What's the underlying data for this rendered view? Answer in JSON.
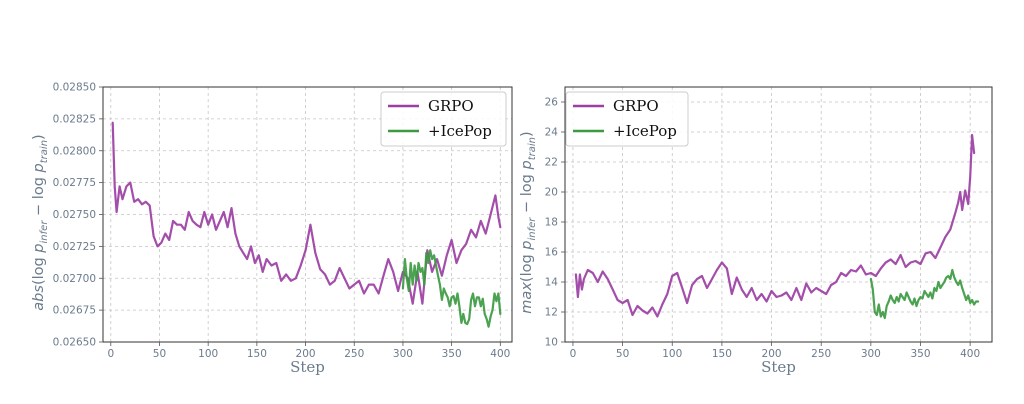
{
  "chart_data": [
    {
      "type": "line",
      "title": "",
      "xlabel": "Step",
      "ylabel_parts": {
        "func": "abs",
        "open": "(log ",
        "p1": "p",
        "s1": "infer",
        "mid": " − log ",
        "p2": "p",
        "s2": "train",
        "close": ")"
      },
      "xlim": [
        -8,
        412
      ],
      "ylim": [
        0.0265,
        0.0285
      ],
      "xticks": [
        0,
        50,
        100,
        150,
        200,
        250,
        300,
        350,
        400
      ],
      "yticks": [
        "0.02650",
        "0.02675",
        "0.02700",
        "0.02725",
        "0.02750",
        "0.02775",
        "0.02800",
        "0.02825",
        "0.02850"
      ],
      "grid": true,
      "legend": "top-right",
      "series": [
        {
          "name": "GRPO",
          "color": "#9b3fa3",
          "x": [
            2,
            4,
            6,
            9,
            12,
            16,
            20,
            24,
            28,
            32,
            36,
            40,
            44,
            48,
            52,
            56,
            60,
            64,
            68,
            72,
            76,
            80,
            84,
            88,
            92,
            96,
            100,
            104,
            108,
            112,
            116,
            120,
            124,
            128,
            132,
            136,
            140,
            144,
            148,
            152,
            156,
            160,
            165,
            170,
            175,
            180,
            185,
            190,
            195,
            200,
            205,
            210,
            215,
            220,
            225,
            230,
            235,
            240,
            245,
            250,
            255,
            260,
            265,
            270,
            275,
            280,
            285,
            290,
            295,
            300,
            305,
            310,
            315,
            320,
            325,
            330,
            335,
            340,
            345,
            350,
            355,
            360,
            365,
            370,
            375,
            380,
            385,
            390,
            395,
            398,
            400
          ],
          "y": [
            0.02822,
            0.02772,
            0.02752,
            0.02772,
            0.02762,
            0.02772,
            0.02775,
            0.0276,
            0.02762,
            0.02758,
            0.0276,
            0.02757,
            0.02733,
            0.02725,
            0.02728,
            0.02735,
            0.0273,
            0.02745,
            0.02742,
            0.02742,
            0.02738,
            0.02752,
            0.02745,
            0.02742,
            0.0274,
            0.02752,
            0.02742,
            0.0275,
            0.02738,
            0.02745,
            0.02752,
            0.0274,
            0.02755,
            0.02735,
            0.02725,
            0.0272,
            0.02715,
            0.02725,
            0.02712,
            0.02718,
            0.02705,
            0.02715,
            0.0271,
            0.02712,
            0.02698,
            0.02703,
            0.02698,
            0.027,
            0.0271,
            0.02722,
            0.02742,
            0.0272,
            0.02707,
            0.02703,
            0.02695,
            0.02698,
            0.02708,
            0.027,
            0.02692,
            0.02695,
            0.02698,
            0.02688,
            0.02695,
            0.02695,
            0.02688,
            0.02702,
            0.02715,
            0.02705,
            0.0269,
            0.02705,
            0.027,
            0.0268,
            0.02705,
            0.0268,
            0.02722,
            0.02705,
            0.02715,
            0.02702,
            0.02718,
            0.0273,
            0.02712,
            0.02722,
            0.02727,
            0.02738,
            0.02732,
            0.02745,
            0.02735,
            0.0275,
            0.02765,
            0.02748,
            0.0274
          ]
        },
        {
          "name": "+IcePop",
          "color": "#3c9a41",
          "x": [
            300,
            302,
            304,
            306,
            308,
            310,
            312,
            314,
            316,
            318,
            320,
            322,
            324,
            326,
            328,
            330,
            332,
            334,
            336,
            338,
            340,
            342,
            344,
            346,
            348,
            350,
            352,
            354,
            356,
            358,
            360,
            362,
            364,
            366,
            368,
            370,
            372,
            374,
            376,
            378,
            380,
            382,
            384,
            386,
            388,
            390,
            392,
            394,
            396,
            398,
            400
          ],
          "y": [
            0.02692,
            0.02715,
            0.027,
            0.0269,
            0.02712,
            0.02695,
            0.0271,
            0.02698,
            0.02712,
            0.02705,
            0.02708,
            0.02695,
            0.0272,
            0.02712,
            0.02722,
            0.02715,
            0.02718,
            0.0271,
            0.02702,
            0.02695,
            0.02683,
            0.02692,
            0.02688,
            0.02685,
            0.02678,
            0.02685,
            0.02686,
            0.0268,
            0.02688,
            0.02678,
            0.02665,
            0.02672,
            0.02665,
            0.02664,
            0.02668,
            0.02683,
            0.02688,
            0.02678,
            0.02685,
            0.02685,
            0.02678,
            0.02684,
            0.02672,
            0.02668,
            0.02662,
            0.0267,
            0.02675,
            0.02688,
            0.02682,
            0.02688,
            0.02672
          ]
        }
      ]
    },
    {
      "type": "line",
      "title": "",
      "xlabel": "Step",
      "ylabel_parts": {
        "func": "max",
        "open": "(log ",
        "p1": "p",
        "s1": "infer",
        "mid": " − log ",
        "p2": "p",
        "s2": "train",
        "close": ")"
      },
      "xlim": [
        -8,
        422
      ],
      "ylim": [
        10,
        27
      ],
      "xticks": [
        0,
        50,
        100,
        150,
        200,
        250,
        300,
        350,
        400
      ],
      "yticks": [
        "10",
        "12",
        "14",
        "16",
        "18",
        "20",
        "22",
        "24",
        "26"
      ],
      "grid": true,
      "legend": "top-left",
      "series": [
        {
          "name": "GRPO",
          "color": "#9b3fa3",
          "x": [
            3,
            5,
            7,
            9,
            11,
            15,
            20,
            25,
            30,
            35,
            40,
            45,
            50,
            55,
            60,
            65,
            70,
            75,
            80,
            85,
            90,
            95,
            100,
            105,
            110,
            115,
            120,
            125,
            130,
            135,
            140,
            145,
            150,
            155,
            160,
            165,
            170,
            175,
            180,
            185,
            190,
            195,
            200,
            205,
            210,
            215,
            220,
            225,
            230,
            235,
            240,
            245,
            250,
            255,
            260,
            265,
            270,
            275,
            280,
            285,
            290,
            295,
            300,
            305,
            310,
            315,
            320,
            325,
            330,
            335,
            340,
            345,
            350,
            355,
            360,
            365,
            370,
            375,
            380,
            385,
            388,
            390,
            392,
            395,
            398,
            400,
            402,
            404
          ],
          "y": [
            14.5,
            13.0,
            14.5,
            13.5,
            14.2,
            14.8,
            14.6,
            14.0,
            14.7,
            14.2,
            13.5,
            12.8,
            12.6,
            12.8,
            11.8,
            12.4,
            12.1,
            11.9,
            12.3,
            11.7,
            12.5,
            13.2,
            14.4,
            14.6,
            13.6,
            12.6,
            13.8,
            14.2,
            14.4,
            13.6,
            14.2,
            14.8,
            15.3,
            14.9,
            13.2,
            14.3,
            13.5,
            13.0,
            13.6,
            12.8,
            13.2,
            12.7,
            13.4,
            13.0,
            13.1,
            13.3,
            12.8,
            13.6,
            12.8,
            13.9,
            13.3,
            13.6,
            13.4,
            13.2,
            13.8,
            14.0,
            14.6,
            14.4,
            14.8,
            14.7,
            15.1,
            14.5,
            14.6,
            14.4,
            14.9,
            15.3,
            15.5,
            15.2,
            15.8,
            15.0,
            15.3,
            15.4,
            15.2,
            15.9,
            16.0,
            15.6,
            16.3,
            17.0,
            17.5,
            18.6,
            19.3,
            20.0,
            18.8,
            20.1,
            19.2,
            21.0,
            23.8,
            22.6
          ]
        },
        {
          "name": "+IcePop",
          "color": "#3c9a41",
          "x": [
            300,
            302,
            304,
            306,
            308,
            310,
            312,
            314,
            316,
            318,
            320,
            322,
            324,
            326,
            328,
            330,
            332,
            334,
            336,
            338,
            340,
            342,
            344,
            346,
            348,
            350,
            352,
            354,
            356,
            358,
            360,
            362,
            364,
            366,
            368,
            370,
            372,
            374,
            376,
            378,
            380,
            382,
            384,
            386,
            388,
            390,
            392,
            394,
            396,
            398,
            400,
            402,
            404,
            406,
            408
          ],
          "y": [
            14.2,
            13.5,
            12.0,
            11.8,
            12.5,
            11.7,
            12.0,
            11.6,
            12.4,
            12.7,
            13.1,
            12.8,
            12.6,
            13.0,
            12.7,
            13.2,
            13.0,
            12.8,
            13.3,
            13.0,
            12.7,
            12.5,
            12.9,
            12.4,
            12.8,
            13.0,
            12.9,
            13.4,
            13.2,
            13.0,
            13.3,
            12.9,
            13.6,
            13.4,
            14.0,
            13.6,
            13.8,
            14.0,
            14.3,
            14.4,
            14.2,
            14.8,
            14.3,
            14.0,
            13.8,
            14.1,
            13.6,
            13.2,
            12.8,
            13.1,
            12.6,
            12.8,
            12.5,
            12.7,
            12.7
          ]
        }
      ]
    }
  ]
}
